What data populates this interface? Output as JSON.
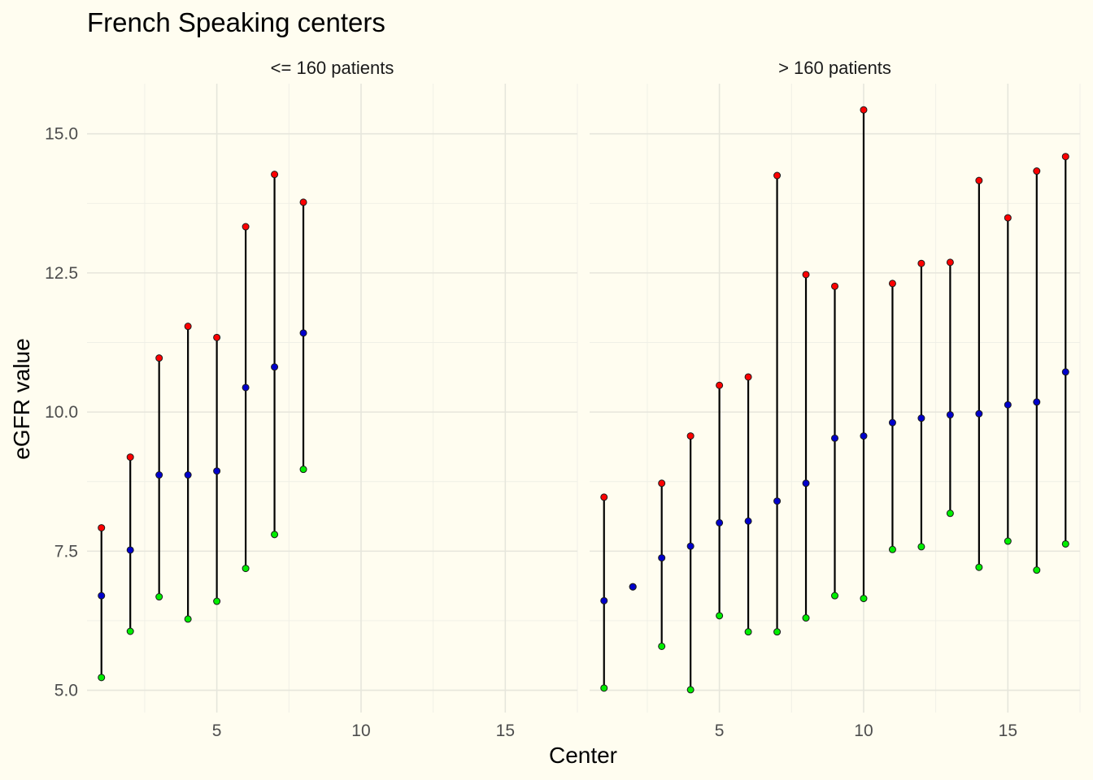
{
  "chart_data": {
    "type": "scatter",
    "title": "French Speaking centers",
    "xlabel": "Center",
    "ylabel": "eGFR value",
    "ylim": [
      4.6,
      15.9
    ],
    "y_ticks": [
      5.0,
      7.5,
      10.0,
      12.5,
      15.0
    ],
    "y_tick_labels": [
      "5.0",
      "7.5",
      "10.0",
      "12.5",
      "15.0"
    ],
    "x_ticks": [
      5,
      10,
      15
    ],
    "x_tick_labels": [
      "5",
      "10",
      "15"
    ],
    "colors": {
      "max": "#ff0000",
      "mean": "#0000cc",
      "min": "#00ee00",
      "line": "#000000"
    },
    "panels": [
      {
        "label": "<= 160 patients",
        "xlim": [
          0.5,
          17.5
        ],
        "centers": [
          {
            "x": 1,
            "min": 5.23,
            "mean": 6.7,
            "max": 7.92
          },
          {
            "x": 2,
            "min": 6.06,
            "mean": 7.52,
            "max": 9.19
          },
          {
            "x": 3,
            "min": 6.68,
            "mean": 8.87,
            "max": 10.97
          },
          {
            "x": 4,
            "min": 6.28,
            "mean": 8.87,
            "max": 11.54
          },
          {
            "x": 5,
            "min": 6.6,
            "mean": 8.94,
            "max": 11.34
          },
          {
            "x": 6,
            "min": 7.19,
            "mean": 10.44,
            "max": 13.33
          },
          {
            "x": 7,
            "min": 7.8,
            "mean": 10.81,
            "max": 14.27
          },
          {
            "x": 8,
            "min": 8.97,
            "mean": 11.42,
            "max": 13.77
          }
        ]
      },
      {
        "label": "> 160 patients",
        "xlim": [
          0.5,
          17.5
        ],
        "centers": [
          {
            "x": 1,
            "min": 5.04,
            "mean": 6.61,
            "max": 8.47
          },
          {
            "x": 2,
            "min": 6.86,
            "mean": 6.86,
            "max": 6.86
          },
          {
            "x": 3,
            "min": 5.79,
            "mean": 7.38,
            "max": 8.72
          },
          {
            "x": 4,
            "min": 5.01,
            "mean": 7.59,
            "max": 9.57
          },
          {
            "x": 5,
            "min": 6.34,
            "mean": 8.01,
            "max": 10.48
          },
          {
            "x": 6,
            "min": 6.05,
            "mean": 8.04,
            "max": 10.63
          },
          {
            "x": 7,
            "min": 6.05,
            "mean": 8.4,
            "max": 14.25
          },
          {
            "x": 8,
            "min": 6.3,
            "mean": 8.72,
            "max": 12.47
          },
          {
            "x": 9,
            "min": 6.7,
            "mean": 9.53,
            "max": 12.26
          },
          {
            "x": 10,
            "min": 6.65,
            "mean": 9.57,
            "max": 15.43
          },
          {
            "x": 11,
            "min": 7.53,
            "mean": 9.81,
            "max": 12.31
          },
          {
            "x": 12,
            "min": 7.58,
            "mean": 9.89,
            "max": 12.67
          },
          {
            "x": 13,
            "min": 8.18,
            "mean": 9.95,
            "max": 12.69
          },
          {
            "x": 14,
            "min": 7.21,
            "mean": 9.97,
            "max": 14.16
          },
          {
            "x": 15,
            "min": 7.68,
            "mean": 10.13,
            "max": 13.49
          },
          {
            "x": 16,
            "min": 7.16,
            "mean": 10.18,
            "max": 14.33
          },
          {
            "x": 17,
            "min": 7.63,
            "mean": 10.72,
            "max": 14.59
          }
        ]
      }
    ]
  }
}
